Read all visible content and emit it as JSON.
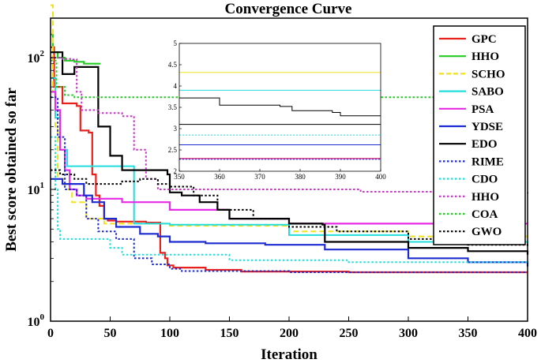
{
  "chart_data": {
    "type": "line",
    "title": "Convergence Curve",
    "xlabel": "Iteration",
    "ylabel": "Best  score obtained so far",
    "xlim": [
      0,
      400
    ],
    "ylim_log10": [
      0,
      2.3
    ],
    "yscale": "log",
    "x_ticks": [
      "0",
      "50",
      "100",
      "150",
      "200",
      "250",
      "300",
      "350",
      "400"
    ],
    "x_tick_values": [
      0,
      50,
      100,
      150,
      200,
      250,
      300,
      350,
      400
    ],
    "y_ticks": [
      {
        "base": "10",
        "exp": "0",
        "value": 1
      },
      {
        "base": "10",
        "exp": "1",
        "value": 10
      },
      {
        "base": "10",
        "exp": "2",
        "value": 100
      }
    ],
    "legend_position": "right",
    "series": [
      {
        "name": "GPC",
        "color": "#e8211d",
        "dash": "solid",
        "width": 2.2,
        "points": [
          [
            0,
            120
          ],
          [
            3,
            60
          ],
          [
            10,
            45
          ],
          [
            22,
            43
          ],
          [
            25,
            28
          ],
          [
            32,
            27
          ],
          [
            35,
            13
          ],
          [
            38,
            9
          ],
          [
            41,
            7.5
          ],
          [
            45,
            6
          ],
          [
            48,
            5.8
          ],
          [
            55,
            5.7
          ],
          [
            80,
            5.6
          ],
          [
            92,
            3.3
          ],
          [
            96,
            3.0
          ],
          [
            98,
            2.65
          ],
          [
            103,
            2.55
          ],
          [
            130,
            2.45
          ],
          [
            160,
            2.38
          ],
          [
            250,
            2.35
          ],
          [
            400,
            2.35
          ]
        ]
      },
      {
        "name": "HHO",
        "color": "#22cc22",
        "dash": "solid",
        "width": 2.2,
        "points": [
          [
            0,
            150
          ],
          [
            2,
            110
          ],
          [
            6,
            100
          ],
          [
            12,
            95
          ],
          [
            20,
            93
          ],
          [
            26,
            93
          ],
          [
            28,
            90
          ],
          [
            36,
            90
          ],
          [
            42,
            90
          ]
        ]
      },
      {
        "name": "SCHO",
        "color": "#f2e21a",
        "dash": "dash",
        "width": 2.0,
        "points": [
          [
            0,
            250
          ],
          [
            2,
            55
          ],
          [
            4,
            30
          ],
          [
            6,
            12
          ],
          [
            12,
            10
          ],
          [
            18,
            8
          ],
          [
            30,
            6
          ],
          [
            45,
            5.5
          ],
          [
            100,
            5.3
          ],
          [
            200,
            4.8
          ],
          [
            300,
            4.4
          ],
          [
            400,
            4.4
          ]
        ]
      },
      {
        "name": "SABO",
        "color": "#22dddd",
        "dash": "solid",
        "width": 2.0,
        "points": [
          [
            0,
            70
          ],
          [
            4,
            35
          ],
          [
            8,
            20
          ],
          [
            14,
            15
          ],
          [
            20,
            15
          ],
          [
            40,
            15
          ],
          [
            68,
            15
          ],
          [
            70,
            5.5
          ],
          [
            100,
            5.4
          ],
          [
            200,
            4.5
          ],
          [
            300,
            4.0
          ],
          [
            400,
            3.9
          ]
        ]
      },
      {
        "name": "PSA",
        "color": "#e62ae6",
        "dash": "solid",
        "width": 2.2,
        "points": [
          [
            0,
            55
          ],
          [
            4,
            40
          ],
          [
            8,
            20
          ],
          [
            12,
            14
          ],
          [
            16,
            10
          ],
          [
            22,
            9
          ],
          [
            30,
            8.5
          ],
          [
            60,
            8
          ],
          [
            100,
            7
          ],
          [
            150,
            6
          ],
          [
            200,
            5.5
          ],
          [
            300,
            5.5
          ],
          [
            400,
            5.5
          ]
        ]
      },
      {
        "name": "YDSE",
        "color": "#1c2bd1",
        "dash": "solid",
        "width": 2.2,
        "points": [
          [
            0,
            12
          ],
          [
            10,
            11
          ],
          [
            20,
            11
          ],
          [
            28,
            9
          ],
          [
            35,
            8
          ],
          [
            45,
            6
          ],
          [
            55,
            5.2
          ],
          [
            75,
            4.6
          ],
          [
            90,
            4.4
          ],
          [
            100,
            4.0
          ],
          [
            130,
            3.9
          ],
          [
            180,
            3.8
          ],
          [
            230,
            3.5
          ],
          [
            300,
            3.0
          ],
          [
            350,
            2.8
          ],
          [
            400,
            2.6
          ]
        ]
      },
      {
        "name": "EDO",
        "color": "#000000",
        "dash": "solid",
        "width": 2.2,
        "points": [
          [
            0,
            110
          ],
          [
            10,
            75
          ],
          [
            18,
            75
          ],
          [
            20,
            85
          ],
          [
            38,
            85
          ],
          [
            40,
            30
          ],
          [
            50,
            18
          ],
          [
            60,
            14
          ],
          [
            95,
            14
          ],
          [
            98,
            13
          ],
          [
            100,
            9.5
          ],
          [
            110,
            9
          ],
          [
            125,
            8
          ],
          [
            140,
            7
          ],
          [
            150,
            6
          ],
          [
            200,
            5.5
          ],
          [
            228,
            5.4
          ],
          [
            230,
            4
          ],
          [
            300,
            3.6
          ],
          [
            350,
            3.4
          ],
          [
            400,
            3.2
          ]
        ]
      },
      {
        "name": "RIME",
        "color": "#1c2bd1",
        "dash": "dot",
        "width": 2.0,
        "points": [
          [
            0,
            50
          ],
          [
            6,
            25
          ],
          [
            12,
            10
          ],
          [
            22,
            9
          ],
          [
            30,
            6
          ],
          [
            40,
            4.8
          ],
          [
            55,
            4.2
          ],
          [
            70,
            3.0
          ],
          [
            85,
            2.7
          ],
          [
            100,
            2.5
          ],
          [
            110,
            2.4
          ],
          [
            200,
            2.35
          ],
          [
            400,
            2.35
          ]
        ]
      },
      {
        "name": "CDO",
        "color": "#22dddd",
        "dash": "dot",
        "width": 2.0,
        "points": [
          [
            0,
            25
          ],
          [
            4,
            10
          ],
          [
            6,
            5
          ],
          [
            8,
            4.2
          ],
          [
            30,
            4.2
          ],
          [
            50,
            3.6
          ],
          [
            60,
            3.2
          ],
          [
            80,
            3.2
          ],
          [
            150,
            2.9
          ],
          [
            250,
            2.8
          ],
          [
            400,
            2.7
          ]
        ]
      },
      {
        "name": "HHO",
        "color": "#c832c8",
        "dash": "dot",
        "width": 2.0,
        "points": [
          [
            0,
            100
          ],
          [
            10,
            98
          ],
          [
            18,
            97
          ],
          [
            22,
            55
          ],
          [
            26,
            40
          ],
          [
            40,
            38
          ],
          [
            60,
            36
          ],
          [
            70,
            20
          ],
          [
            80,
            12
          ],
          [
            90,
            10
          ],
          [
            120,
            10
          ],
          [
            200,
            10
          ],
          [
            260,
            9.6
          ],
          [
            330,
            9.4
          ],
          [
            400,
            9.3
          ]
        ]
      },
      {
        "name": "COA",
        "color": "#22cc22",
        "dash": "dot",
        "width": 2.0,
        "points": [
          [
            0,
            95
          ],
          [
            5,
            60
          ],
          [
            12,
            52
          ],
          [
            20,
            50
          ],
          [
            60,
            50
          ],
          [
            150,
            50
          ],
          [
            250,
            50
          ],
          [
            340,
            50
          ],
          [
            400,
            50
          ]
        ]
      },
      {
        "name": "GWO",
        "color": "#000000",
        "dash": "dot",
        "width": 2.0,
        "points": [
          [
            0,
            14
          ],
          [
            8,
            13
          ],
          [
            20,
            12
          ],
          [
            30,
            11
          ],
          [
            45,
            11
          ],
          [
            60,
            11.5
          ],
          [
            75,
            12
          ],
          [
            90,
            11
          ],
          [
            100,
            10.5
          ],
          [
            120,
            9
          ],
          [
            140,
            7
          ],
          [
            170,
            6
          ],
          [
            200,
            5.2
          ],
          [
            240,
            4.8
          ],
          [
            300,
            4.2
          ],
          [
            350,
            3.8
          ],
          [
            400,
            3.7
          ]
        ]
      }
    ],
    "inset": {
      "xlim": [
        350,
        400
      ],
      "ylim": [
        2,
        5
      ],
      "x_ticks": [
        "350",
        "360",
        "370",
        "380",
        "390",
        "400"
      ],
      "x_tick_values": [
        350,
        360,
        370,
        380,
        390,
        400
      ],
      "y_ticks": [
        "2",
        "2.5",
        "3",
        "3.5",
        "4",
        "4.5",
        "5"
      ],
      "y_tick_values": [
        2,
        2.5,
        3,
        3.5,
        4,
        4.5,
        5
      ],
      "series": [
        {
          "color": "#f2e21a",
          "dash": "solid",
          "points": [
            [
              350,
              4.32
            ],
            [
              400,
              4.32
            ]
          ]
        },
        {
          "color": "#22dddd",
          "dash": "solid",
          "points": [
            [
              350,
              3.9
            ],
            [
              400,
              3.9
            ]
          ]
        },
        {
          "color": "#000000",
          "dash": "solid",
          "points": [
            [
              350,
              3.72
            ],
            [
              358,
              3.72
            ],
            [
              360,
              3.55
            ],
            [
              375,
              3.52
            ],
            [
              378,
              3.42
            ],
            [
              388,
              3.38
            ],
            [
              390,
              3.3
            ],
            [
              400,
              3.3
            ]
          ]
        },
        {
          "color": "#000000",
          "dash": "solid",
          "points": [
            [
              350,
              3.1
            ],
            [
              400,
              3.1
            ]
          ]
        },
        {
          "color": "#22dddd",
          "dash": "dot",
          "points": [
            [
              350,
              2.85
            ],
            [
              400,
              2.85
            ]
          ]
        },
        {
          "color": "#1c2bd1",
          "dash": "solid",
          "points": [
            [
              350,
              2.62
            ],
            [
              400,
              2.62
            ]
          ]
        },
        {
          "color": "#e8211d",
          "dash": "solid",
          "points": [
            [
              350,
              2.3
            ],
            [
              400,
              2.3
            ]
          ]
        },
        {
          "color": "#c832c8",
          "dash": "solid",
          "points": [
            [
              350,
              2.29
            ],
            [
              400,
              2.29
            ]
          ]
        },
        {
          "color": "#1c2bd1",
          "dash": "dot",
          "points": [
            [
              350,
              2.28
            ],
            [
              400,
              2.28
            ]
          ]
        }
      ]
    }
  }
}
